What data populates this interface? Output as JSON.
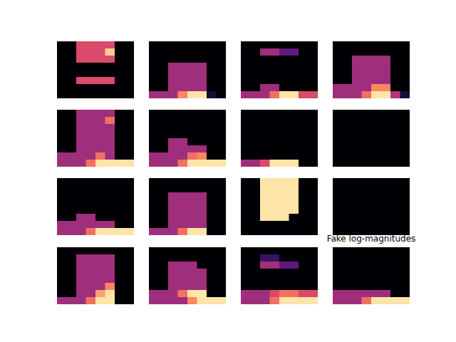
{
  "chart_data": [
    {
      "type": "heatmap",
      "zlim": [
        0,
        1
      ],
      "tick_labels": false,
      "cells": [
        [
          0,
          0,
          0.6,
          0.6,
          0.6,
          0.6,
          0,
          0
        ],
        [
          0,
          0,
          0.6,
          0.6,
          0.6,
          0.9,
          0,
          0
        ],
        [
          0,
          0,
          0.6,
          0.6,
          0.6,
          0.6,
          0,
          0
        ],
        [
          0,
          0,
          0,
          0,
          0,
          0,
          0,
          0
        ],
        [
          0,
          0,
          0,
          0,
          0,
          0,
          0,
          0
        ],
        [
          0,
          0,
          0.6,
          0.6,
          0.6,
          0.6,
          0,
          0
        ],
        [
          0,
          0,
          0,
          0,
          0,
          0,
          0,
          0
        ],
        [
          0,
          0,
          0,
          0,
          0,
          0,
          0,
          0
        ]
      ]
    },
    {
      "type": "heatmap",
      "zlim": [
        0,
        1
      ],
      "tick_labels": false,
      "cells": [
        [
          0,
          0,
          0,
          0,
          0,
          0,
          0,
          0
        ],
        [
          0,
          0,
          0,
          0,
          0,
          0,
          0,
          0
        ],
        [
          0,
          0,
          0,
          0,
          0,
          0,
          0,
          0
        ],
        [
          0,
          0,
          0.45,
          0.45,
          0.45,
          0.45,
          0,
          0
        ],
        [
          0,
          0,
          0.45,
          0.45,
          0.45,
          0.45,
          0,
          0
        ],
        [
          0,
          0,
          0.45,
          0.45,
          0.45,
          0.45,
          0,
          0
        ],
        [
          0,
          0,
          0.45,
          0.45,
          0.45,
          0.45,
          0,
          0
        ],
        [
          0.45,
          0.45,
          0.45,
          0.75,
          0.95,
          0.95,
          0.1,
          0
        ]
      ]
    },
    {
      "type": "heatmap",
      "zlim": [
        0,
        1
      ],
      "tick_labels": false,
      "cells": [
        [
          0,
          0,
          0,
          0,
          0,
          0,
          0,
          0
        ],
        [
          0,
          0,
          0.45,
          0.45,
          0.3,
          0.3,
          0,
          0
        ],
        [
          0,
          0,
          0,
          0,
          0,
          0,
          0,
          0
        ],
        [
          0,
          0,
          0,
          0,
          0,
          0,
          0,
          0
        ],
        [
          0,
          0,
          0,
          0,
          0,
          0,
          0,
          0
        ],
        [
          0,
          0,
          0,
          0,
          0,
          0,
          0,
          0
        ],
        [
          0,
          0,
          0.45,
          0.45,
          0,
          0,
          0,
          0
        ],
        [
          0.45,
          0.45,
          0.45,
          0.7,
          0.95,
          0.95,
          0.6,
          0.6
        ]
      ]
    },
    {
      "type": "heatmap",
      "zlim": [
        0,
        1
      ],
      "tick_labels": false,
      "cells": [
        [
          0,
          0,
          0,
          0,
          0,
          0,
          0,
          0
        ],
        [
          0,
          0,
          0,
          0,
          0,
          0,
          0,
          0
        ],
        [
          0,
          0,
          0.45,
          0.45,
          0.45,
          0.45,
          0,
          0
        ],
        [
          0,
          0,
          0.45,
          0.45,
          0.45,
          0.45,
          0,
          0
        ],
        [
          0,
          0,
          0.45,
          0.45,
          0.45,
          0.45,
          0,
          0
        ],
        [
          0,
          0,
          0.45,
          0.45,
          0.45,
          0.45,
          0,
          0
        ],
        [
          0.45,
          0.45,
          0.45,
          0.45,
          0.75,
          0.75,
          0,
          0
        ],
        [
          0.45,
          0.45,
          0.45,
          0.7,
          0.95,
          0.95,
          0.5,
          0.1
        ]
      ]
    },
    {
      "type": "heatmap",
      "zlim": [
        0,
        1
      ],
      "tick_labels": false,
      "cells": [
        [
          0,
          0,
          0.45,
          0.45,
          0.45,
          0.45,
          0,
          0
        ],
        [
          0,
          0,
          0.45,
          0.45,
          0.45,
          0.7,
          0,
          0
        ],
        [
          0,
          0,
          0.45,
          0.45,
          0.45,
          0.45,
          0,
          0
        ],
        [
          0,
          0,
          0.45,
          0.45,
          0.45,
          0.45,
          0,
          0
        ],
        [
          0,
          0,
          0.45,
          0.45,
          0.45,
          0.45,
          0,
          0
        ],
        [
          0,
          0,
          0.45,
          0.45,
          0.45,
          0.45,
          0,
          0
        ],
        [
          0.45,
          0.45,
          0.45,
          0.45,
          0.7,
          0.45,
          0,
          0
        ],
        [
          0.45,
          0.45,
          0.45,
          0.7,
          0.95,
          0.95,
          0.95,
          0.95
        ]
      ]
    },
    {
      "type": "heatmap",
      "zlim": [
        0,
        1
      ],
      "tick_labels": false,
      "cells": [
        [
          0,
          0,
          0,
          0,
          0,
          0,
          0,
          0
        ],
        [
          0,
          0,
          0,
          0,
          0,
          0,
          0,
          0
        ],
        [
          0,
          0,
          0,
          0,
          0,
          0,
          0,
          0
        ],
        [
          0,
          0,
          0,
          0,
          0,
          0,
          0,
          0
        ],
        [
          0,
          0,
          0.45,
          0.45,
          0,
          0,
          0,
          0
        ],
        [
          0,
          0,
          0.45,
          0.45,
          0.45,
          0.45,
          0,
          0
        ],
        [
          0.45,
          0.45,
          0.45,
          0.45,
          0.7,
          0.75,
          0,
          0
        ],
        [
          0.45,
          0.45,
          0.45,
          0.7,
          0.95,
          0.95,
          0.95,
          0.95
        ]
      ]
    },
    {
      "type": "heatmap",
      "zlim": [
        0,
        1
      ],
      "tick_labels": false,
      "cells": [
        [
          0,
          0,
          0,
          0,
          0,
          0,
          0,
          0
        ],
        [
          0,
          0,
          0,
          0,
          0,
          0,
          0,
          0
        ],
        [
          0,
          0,
          0,
          0,
          0,
          0,
          0,
          0
        ],
        [
          0,
          0,
          0,
          0,
          0,
          0,
          0,
          0
        ],
        [
          0,
          0,
          0,
          0,
          0,
          0,
          0,
          0
        ],
        [
          0,
          0,
          0,
          0,
          0,
          0,
          0,
          0
        ],
        [
          0,
          0,
          0,
          0,
          0,
          0,
          0,
          0
        ],
        [
          0.45,
          0.45,
          0.6,
          0.95,
          0.95,
          0.95,
          0,
          0
        ]
      ]
    },
    {
      "type": "heatmap",
      "zlim": [
        0,
        1
      ],
      "tick_labels": false,
      "cells": [
        [
          0,
          0,
          0,
          0,
          0,
          0,
          0,
          0
        ],
        [
          0,
          0,
          0,
          0,
          0,
          0,
          0,
          0
        ],
        [
          0,
          0,
          0,
          0,
          0,
          0,
          0,
          0
        ],
        [
          0,
          0,
          0,
          0,
          0,
          0,
          0,
          0
        ],
        [
          0,
          0,
          0,
          0,
          0,
          0,
          0,
          0
        ],
        [
          0,
          0,
          0,
          0,
          0,
          0,
          0,
          0
        ],
        [
          0,
          0,
          0,
          0,
          0,
          0,
          0,
          0
        ],
        [
          0,
          0,
          0,
          0,
          0,
          0,
          0,
          0
        ]
      ]
    },
    {
      "type": "heatmap",
      "zlim": [
        0,
        1
      ],
      "tick_labels": false,
      "cells": [
        [
          0,
          0,
          0,
          0,
          0,
          0,
          0,
          0
        ],
        [
          0,
          0,
          0,
          0,
          0,
          0,
          0,
          0
        ],
        [
          0,
          0,
          0,
          0,
          0,
          0,
          0,
          0
        ],
        [
          0,
          0,
          0,
          0,
          0,
          0,
          0,
          0
        ],
        [
          0,
          0,
          0,
          0,
          0,
          0,
          0,
          0
        ],
        [
          0,
          0,
          0.45,
          0.45,
          0,
          0,
          0,
          0
        ],
        [
          0.45,
          0.45,
          0.45,
          0.45,
          0.45,
          0.45,
          0,
          0
        ],
        [
          0.45,
          0.45,
          0.45,
          0.7,
          0.95,
          0.95,
          0.95,
          0.95
        ]
      ]
    },
    {
      "type": "heatmap",
      "zlim": [
        0,
        1
      ],
      "tick_labels": false,
      "cells": [
        [
          0,
          0,
          0,
          0,
          0,
          0,
          0,
          0
        ],
        [
          0,
          0,
          0,
          0,
          0,
          0,
          0,
          0
        ],
        [
          0,
          0,
          0.45,
          0.45,
          0.45,
          0.45,
          0,
          0
        ],
        [
          0,
          0,
          0.45,
          0.45,
          0.45,
          0.45,
          0,
          0
        ],
        [
          0,
          0,
          0.45,
          0.45,
          0.45,
          0.45,
          0,
          0
        ],
        [
          0,
          0,
          0.45,
          0.45,
          0.45,
          0.45,
          0,
          0
        ],
        [
          0,
          0,
          0.45,
          0.45,
          0.45,
          0.45,
          0,
          0
        ],
        [
          0.45,
          0.45,
          0.45,
          0.7,
          0.95,
          0.95,
          0,
          0
        ]
      ]
    },
    {
      "type": "heatmap",
      "zlim": [
        0,
        1
      ],
      "tick_labels": false,
      "cells": [
        [
          0,
          0,
          0.95,
          0.95,
          0.95,
          0.95,
          0,
          0
        ],
        [
          0,
          0,
          0.95,
          0.95,
          0.95,
          0.95,
          0,
          0
        ],
        [
          0,
          0,
          0.95,
          0.95,
          0.95,
          0.95,
          0,
          0
        ],
        [
          0,
          0,
          0.95,
          0.95,
          0.95,
          0.95,
          0,
          0
        ],
        [
          0,
          0,
          0.95,
          0.95,
          0.95,
          0.95,
          0,
          0
        ],
        [
          0,
          0,
          0.95,
          0.95,
          0.95,
          0,
          0,
          0
        ],
        [
          0,
          0,
          0,
          0,
          0,
          0,
          0,
          0
        ],
        [
          0,
          0,
          0,
          0,
          0,
          0,
          0,
          0
        ]
      ]
    },
    {
      "type": "heatmap",
      "zlim": [
        0,
        1
      ],
      "tick_labels": false,
      "cells": [
        [
          0,
          0,
          0,
          0,
          0,
          0,
          0,
          0
        ],
        [
          0,
          0,
          0,
          0,
          0,
          0,
          0,
          0
        ],
        [
          0,
          0,
          0,
          0,
          0,
          0,
          0,
          0
        ],
        [
          0,
          0,
          0,
          0,
          0,
          0,
          0,
          0
        ],
        [
          0,
          0,
          0,
          0,
          0,
          0,
          0,
          0
        ],
        [
          0,
          0,
          0,
          0,
          0,
          0,
          0,
          0
        ],
        [
          0,
          0,
          0,
          0,
          0,
          0,
          0,
          0
        ],
        [
          0,
          0,
          0,
          0,
          0,
          0,
          0,
          0
        ]
      ]
    },
    {
      "type": "heatmap",
      "zlim": [
        0,
        1
      ],
      "tick_labels": false,
      "cells": [
        [
          0,
          0,
          0,
          0,
          0,
          0,
          0,
          0
        ],
        [
          0,
          0,
          0.45,
          0.45,
          0.45,
          0.45,
          0,
          0
        ],
        [
          0,
          0,
          0.45,
          0.45,
          0.45,
          0.45,
          0,
          0
        ],
        [
          0,
          0,
          0.45,
          0.45,
          0.45,
          0.45,
          0,
          0
        ],
        [
          0,
          0,
          0.45,
          0.45,
          0.45,
          0.45,
          0,
          0
        ],
        [
          0,
          0,
          0.45,
          0.45,
          0.45,
          0.75,
          0,
          0
        ],
        [
          0,
          0,
          0.45,
          0.45,
          0.8,
          0.95,
          0,
          0
        ],
        [
          0.45,
          0.45,
          0.45,
          0.7,
          0.95,
          0.95,
          0,
          0
        ]
      ]
    },
    {
      "type": "heatmap",
      "zlim": [
        0,
        1
      ],
      "tick_labels": false,
      "cells": [
        [
          0,
          0,
          0,
          0,
          0,
          0,
          0,
          0
        ],
        [
          0,
          0,
          0,
          0,
          0,
          0,
          0,
          0
        ],
        [
          0,
          0,
          0.45,
          0.45,
          0.45,
          0,
          0,
          0
        ],
        [
          0,
          0,
          0.45,
          0.45,
          0.45,
          0.45,
          0,
          0
        ],
        [
          0,
          0,
          0.45,
          0.45,
          0.45,
          0.45,
          0,
          0
        ],
        [
          0,
          0,
          0.45,
          0.45,
          0.45,
          0.45,
          0,
          0
        ],
        [
          0.45,
          0.45,
          0.45,
          0.7,
          0.95,
          0.95,
          0,
          0
        ],
        [
          0.45,
          0.45,
          0.45,
          0.45,
          0.75,
          0.95,
          0.95,
          0.95
        ]
      ]
    },
    {
      "type": "heatmap",
      "zlim": [
        0,
        1
      ],
      "tick_labels": false,
      "cells": [
        [
          0,
          0,
          0,
          0,
          0,
          0,
          0,
          0
        ],
        [
          0,
          0,
          0.2,
          0.2,
          0,
          0,
          0,
          0
        ],
        [
          0,
          0,
          0.45,
          0.45,
          0.3,
          0.3,
          0,
          0
        ],
        [
          0,
          0,
          0,
          0,
          0,
          0,
          0,
          0
        ],
        [
          0,
          0,
          0,
          0,
          0,
          0,
          0,
          0
        ],
        [
          0,
          0,
          0,
          0,
          0,
          0,
          0,
          0
        ],
        [
          0.45,
          0.45,
          0.45,
          0.6,
          0.7,
          0.7,
          0.6,
          0.6
        ],
        [
          0.45,
          0.45,
          0.45,
          0.7,
          0.95,
          0.95,
          0.95,
          0.95
        ]
      ]
    },
    {
      "type": "heatmap",
      "title": "Fake log-magnitudes",
      "zlim": [
        0,
        1
      ],
      "tick_labels": false,
      "cells": [
        [
          0,
          0,
          0,
          0,
          0,
          0,
          0,
          0
        ],
        [
          0,
          0,
          0,
          0,
          0,
          0,
          0,
          0
        ],
        [
          0,
          0,
          0,
          0,
          0,
          0,
          0,
          0
        ],
        [
          0,
          0,
          0,
          0,
          0,
          0,
          0,
          0
        ],
        [
          0,
          0,
          0,
          0,
          0,
          0,
          0,
          0
        ],
        [
          0,
          0,
          0,
          0,
          0,
          0,
          0,
          0
        ],
        [
          0.45,
          0.45,
          0.45,
          0.45,
          0.45,
          0.45,
          0,
          0
        ],
        [
          0.45,
          0.45,
          0.45,
          0.7,
          0.95,
          0.95,
          0.95,
          0.95
        ]
      ]
    }
  ]
}
